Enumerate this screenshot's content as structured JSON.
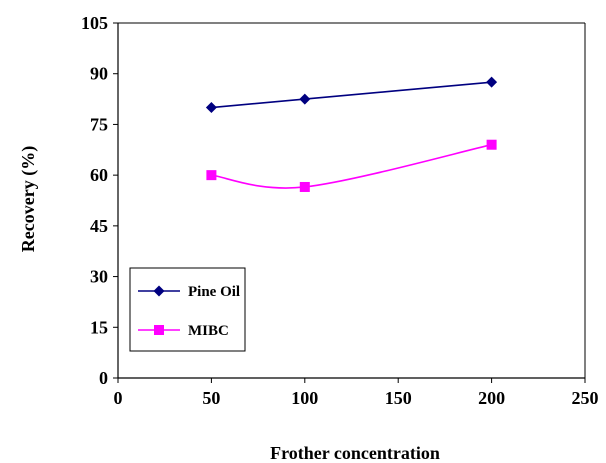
{
  "chart_data": {
    "type": "line",
    "title": "",
    "xlabel": "Frother concentration",
    "ylabel": "Recovery (%)",
    "xlim": [
      0,
      250
    ],
    "ylim": [
      0,
      105
    ],
    "xticks": [
      0,
      50,
      100,
      150,
      200,
      250
    ],
    "yticks": [
      0,
      15,
      30,
      45,
      60,
      75,
      90,
      105
    ],
    "grid": false,
    "smooth": true,
    "legend_position": "bottom-left",
    "series": [
      {
        "name": "Pine Oil",
        "x": [
          50,
          100,
          200
        ],
        "values": [
          80,
          82.5,
          87.5
        ],
        "color": "#000080",
        "marker": "diamond"
      },
      {
        "name": "MIBC",
        "x": [
          50,
          100,
          200
        ],
        "values": [
          60,
          56.5,
          69
        ],
        "color": "#ff00ff",
        "marker": "square"
      }
    ]
  }
}
